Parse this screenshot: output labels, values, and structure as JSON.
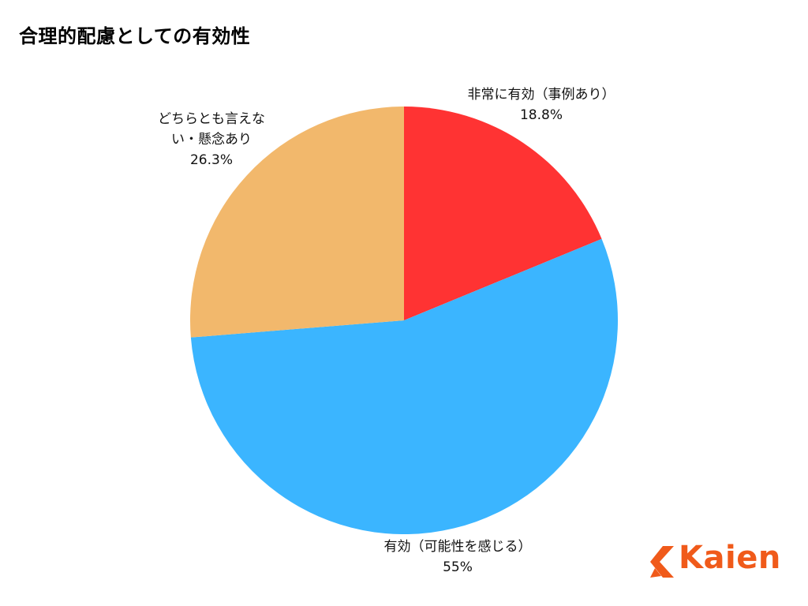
{
  "title": "合理的配慮としての有効性",
  "logo": {
    "text": "Kaien",
    "color": "#f05a1a",
    "icon": "kaien-logo-icon"
  },
  "chart_data": {
    "type": "pie",
    "title": "合理的配慮としての有効性",
    "start": "top",
    "direction": "clockwise",
    "slices": [
      {
        "label": "非常に有効（事例あり）",
        "label_lines": [
          "非常に有効（事例あり）"
        ],
        "value": 18.8,
        "value_label": "18.8%",
        "color": "#ff3333"
      },
      {
        "label": "有効（可能性を感じる）",
        "label_lines": [
          "有効（可能性を感じる）"
        ],
        "value": 55,
        "value_label": "55%",
        "color": "#3bb5ff"
      },
      {
        "label": "どちらとも言えない・懸念あり",
        "label_lines": [
          "どちらとも言えな",
          "い・懸念あり"
        ],
        "value": 26.3,
        "value_label": "26.3%",
        "color": "#f2b86c"
      }
    ]
  }
}
